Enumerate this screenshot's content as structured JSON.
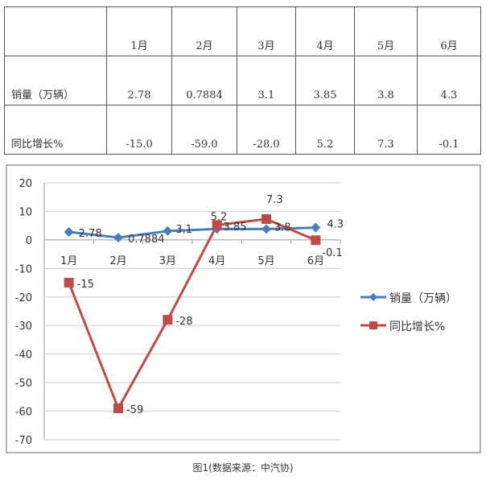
{
  "table": {
    "months": [
      "1月",
      "2月",
      "3月",
      "4月",
      "5月",
      "6月"
    ],
    "rows": [
      {
        "label": "销量（万辆）",
        "values": [
          "2.78",
          "0.7884",
          "3.1",
          "3.85",
          "3.8",
          "4.3"
        ]
      },
      {
        "label": "同比增长%",
        "values": [
          "-15.0",
          "-59.0",
          "-28.0",
          "5.2",
          "7.3",
          "-0.1"
        ]
      }
    ]
  },
  "chart_data": {
    "type": "line",
    "categories": [
      "1月",
      "2月",
      "3月",
      "4月",
      "5月",
      "6月"
    ],
    "series": [
      {
        "name": "销量（万辆）",
        "values": [
          2.78,
          0.7884,
          3.1,
          3.85,
          3.8,
          4.3
        ],
        "labels": [
          "2.78",
          "0.7884",
          "3.1",
          "3.85",
          "3.8",
          "4.3"
        ],
        "color": "#4a7ebb",
        "marker": "diamond"
      },
      {
        "name": "同比增长%",
        "values": [
          -15,
          -59,
          -28,
          5.2,
          7.3,
          -0.1
        ],
        "labels": [
          "-15",
          "-59",
          "-28",
          "5.2",
          "7.3",
          "-0.1"
        ],
        "color": "#be4b48",
        "marker": "square"
      }
    ],
    "ylim": [
      -70,
      20
    ],
    "yticks": [
      "20",
      "10",
      "0",
      "-10",
      "-20",
      "-30",
      "-40",
      "-50",
      "-60",
      "-70"
    ],
    "grid": true,
    "legend": "right"
  },
  "caption": "图1(数据来源：中汽协)"
}
